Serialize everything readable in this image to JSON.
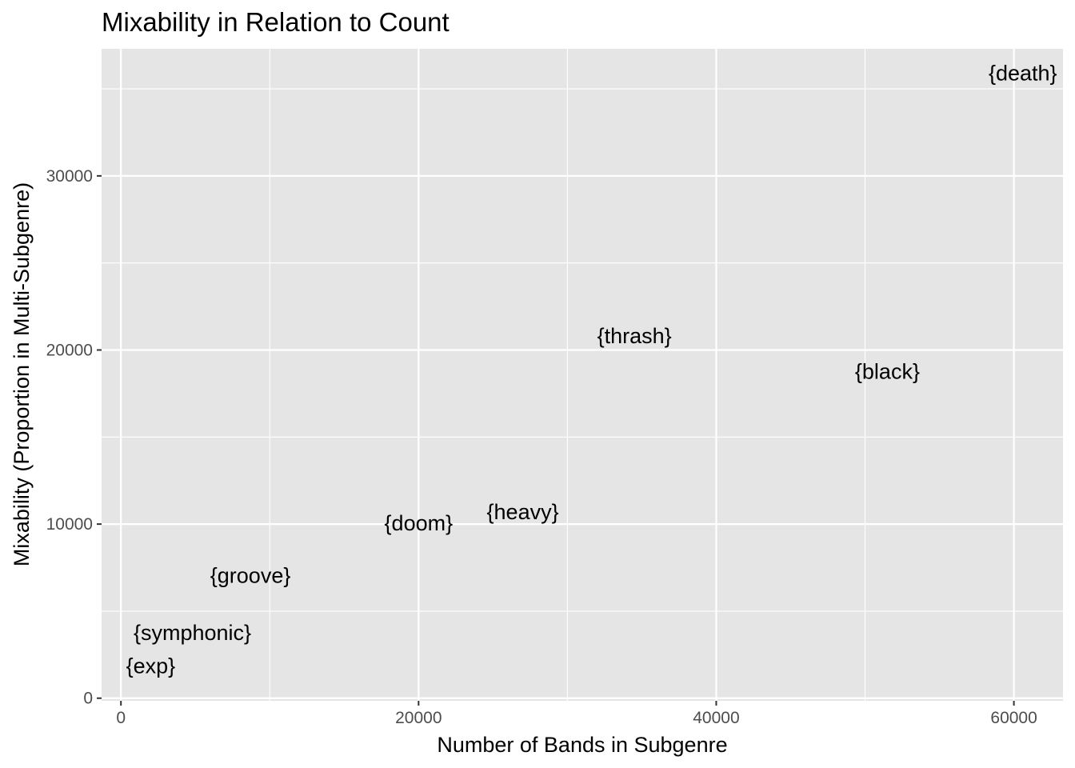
{
  "chart_data": {
    "type": "scatter",
    "title": "Mixability in Relation to Count",
    "xlabel": "Number of Bands in Subgenre",
    "ylabel": "Mixability (Proportion in Multi-Subgenre)",
    "xlim": [
      -1300,
      63300
    ],
    "ylim": [
      -150,
      37300
    ],
    "x_ticks": [
      0,
      20000,
      40000,
      60000
    ],
    "x_tick_labels": [
      "0",
      "20000",
      "40000",
      "60000"
    ],
    "y_ticks": [
      0,
      10000,
      20000,
      30000
    ],
    "y_tick_labels": [
      "0",
      "10000",
      "20000",
      "30000"
    ],
    "grid": true,
    "panel_background": "#e5e5e5",
    "grid_color": "#ffffff",
    "marker": "text",
    "points": [
      {
        "label": "{death}",
        "x": 60600,
        "y": 35900
      },
      {
        "label": "{thrash}",
        "x": 34500,
        "y": 20800
      },
      {
        "label": "{black}",
        "x": 51500,
        "y": 18750
      },
      {
        "label": "{heavy}",
        "x": 27000,
        "y": 10700
      },
      {
        "label": "{doom}",
        "x": 20000,
        "y": 10050
      },
      {
        "label": "{groove}",
        "x": 8700,
        "y": 7050
      },
      {
        "label": "{symphonic}",
        "x": 4800,
        "y": 3750
      },
      {
        "label": "{exp}",
        "x": 2000,
        "y": 1850
      }
    ]
  }
}
